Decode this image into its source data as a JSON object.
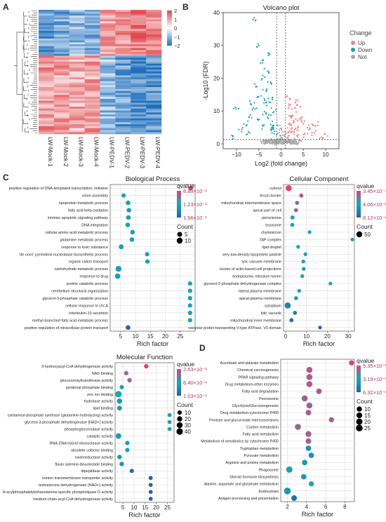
{
  "panel_letters": [
    "A",
    "B",
    "C",
    "D"
  ],
  "colors": {
    "up": "#f08080",
    "down": "#1ba3b4",
    "not": "#a8a8a8",
    "grid": "#d6d6d6",
    "heat_high": "#e0474c",
    "heat_mid": "#ffffff",
    "heat_low": "#1f6fbd",
    "q_high": "#d6467e",
    "q_mid": "#1aa7b5",
    "q_low": "#2a5fa6",
    "count_dot": "#000000"
  },
  "chart_data": [
    {
      "type": "heatmap",
      "panel": "A",
      "columns": [
        "LW-Mock-1",
        "LW-Mock-2",
        "LW-Mock-3",
        "LW-Mock-4",
        "LW-PEDV-1",
        "LW-PEDV-2",
        "LW-PEDV-3",
        "LW-PEDV-4"
      ],
      "color_scale": {
        "ticks": [
          2,
          1,
          0,
          -1,
          -2
        ],
        "colors": [
          "#e0474c",
          "#ffffff",
          "#1f6fbd"
        ]
      },
      "blocks": [
        {
          "label": "upper",
          "fraction": 0.37,
          "pattern": [
            -1.3,
            -1.2,
            -1.0,
            -1.1,
            1.0,
            1.2,
            1.4,
            1.3
          ]
        },
        {
          "label": "lower",
          "fraction": 0.63,
          "pattern": [
            1.1,
            1.0,
            0.9,
            1.0,
            -0.9,
            -1.3,
            -1.6,
            -1.5
          ]
        }
      ]
    },
    {
      "type": "scatter",
      "panel": "B",
      "title": "Volcano plot",
      "xlabel": "Log2 (fold change)",
      "ylabel": "-Log10 (FDR)",
      "xlim": [
        -13,
        13
      ],
      "ylim": [
        -1.5,
        40
      ],
      "xticks": [
        -10,
        -5,
        0,
        5,
        10
      ],
      "yticks": [
        0,
        10,
        20,
        30,
        40
      ],
      "thresholds": {
        "x": [
          -1,
          1
        ],
        "y": 1.3
      },
      "legend": {
        "title": "Change",
        "entries": [
          "Up",
          "Down",
          "Not"
        ]
      },
      "series": [
        {
          "name": "Up",
          "points": [
            [
              1.5,
              2.5
            ],
            [
              2.0,
              5.2
            ],
            [
              2.4,
              8.5
            ],
            [
              3.0,
              10.3
            ],
            [
              3.4,
              12.8
            ],
            [
              4.0,
              11.2
            ],
            [
              2.7,
              4.1
            ],
            [
              1.8,
              3.2
            ],
            [
              5.0,
              6.5
            ],
            [
              6.0,
              4.3
            ],
            [
              7.5,
              3.4
            ],
            [
              9.0,
              2.2
            ],
            [
              10.2,
              3.1
            ],
            [
              4.5,
              8.0
            ],
            [
              3.2,
              7.0
            ],
            [
              2.1,
              9.2
            ],
            [
              1.6,
              14.3
            ],
            [
              2.8,
              3.7
            ],
            [
              5.5,
              2.7
            ],
            [
              6.8,
              5.6
            ],
            [
              4.2,
              4.9
            ],
            [
              3.6,
              2.2
            ],
            [
              8.0,
              6.1
            ],
            [
              2.3,
              6.4
            ],
            [
              1.9,
              11.4
            ]
          ]
        },
        {
          "name": "Down",
          "points": [
            [
              -1.5,
              3.1
            ],
            [
              -2.0,
              5.3
            ],
            [
              -2.5,
              8.2
            ],
            [
              -3.0,
              12.1
            ],
            [
              -3.5,
              16.4
            ],
            [
              -4.0,
              20.2
            ],
            [
              -4.5,
              25.3
            ],
            [
              -5.0,
              30.1
            ],
            [
              -5.8,
              38.2
            ],
            [
              -3.2,
              22.3
            ],
            [
              -2.7,
              18.1
            ],
            [
              -4.8,
              14.2
            ],
            [
              -6.0,
              10.3
            ],
            [
              -7.0,
              8.1
            ],
            [
              -8.0,
              6.2
            ],
            [
              -9.0,
              4.3
            ],
            [
              -10.1,
              11.2
            ],
            [
              -11.0,
              2.2
            ],
            [
              -2.2,
              4.2
            ],
            [
              -1.8,
              6.3
            ],
            [
              -3.8,
              9.2
            ],
            [
              -5.2,
              7.3
            ],
            [
              -6.5,
              12.4
            ],
            [
              -2.9,
              27.2
            ],
            [
              -3.6,
              13.1
            ],
            [
              -1.6,
              10.2
            ],
            [
              -4.2,
              5.1
            ],
            [
              -7.5,
              3.4
            ],
            [
              -2.4,
              14.2
            ],
            [
              -5.5,
              18.1
            ]
          ]
        },
        {
          "name": "Not",
          "points": [
            [
              -1.0,
              0.5
            ],
            [
              -0.8,
              1.2
            ],
            [
              -0.5,
              0.3
            ],
            [
              -0.3,
              2.0
            ],
            [
              0.0,
              0.8
            ],
            [
              0.3,
              1.4
            ],
            [
              0.6,
              0.2
            ],
            [
              0.9,
              1.1
            ],
            [
              -0.6,
              0.9
            ],
            [
              0.4,
              0.6
            ],
            [
              -1.2,
              0.4
            ],
            [
              1.2,
              0.7
            ],
            [
              2.0,
              0.6
            ],
            [
              -2.1,
              0.8
            ],
            [
              3.0,
              0.3
            ],
            [
              -3.2,
              0.5
            ],
            [
              -0.2,
              3.2
            ],
            [
              0.2,
              4.1
            ],
            [
              -0.4,
              5.2
            ],
            [
              0.5,
              2.6
            ],
            [
              -4.0,
              0.2
            ],
            [
              4.2,
              0.4
            ]
          ]
        }
      ]
    },
    {
      "type": "scatter",
      "panel": "C",
      "title": "Biological Process",
      "xlabel": "Rich factor",
      "xticks": [
        5,
        10,
        15,
        20,
        25
      ],
      "xlim": [
        1.5,
        30
      ],
      "legend": {
        "qvalue_title": "qvalue",
        "qvalue_ticks": [
          "8.89×10⁻²",
          "1.23×10⁻¹",
          "1.56×10⁻¹"
        ],
        "count_title": "Count",
        "count_ticks": [
          5,
          10
        ]
      },
      "categories": [
        "positive regulation of DNA-templated transcription, initiation",
        "virion assembly",
        "lipoprotein metabolic process",
        "fatty acid beta-oxidation",
        "intrinsic apoptotic signaling pathway",
        "DNA integration",
        "cellular amino acid metabolic process",
        "glutamine metabolic process",
        "response to toxic substance",
        "'de novo' pyrimidine nucleobase biosynthetic process",
        "organic cation transport",
        "carbohydrate metabolic process",
        "response to drug",
        "proline catabolic process",
        "cerebellum structural organization",
        "glycerol-3-phosphate catabolic process",
        "cellular response to UV-A",
        "interleukin-10 secretion",
        "methyl-branched fatty acid metabolic process",
        "positive regulation of intracellular protein transport"
      ],
      "rich_factor": [
        28.5,
        6.0,
        7.5,
        7.8,
        7.6,
        7.4,
        9.0,
        8.8,
        5.2,
        13.9,
        14.0,
        4.3,
        4.0,
        28.3,
        28.3,
        28.3,
        28.3,
        28.3,
        28.3,
        7.5
      ],
      "count": [
        4,
        3,
        4,
        4,
        4,
        4,
        4,
        4,
        5,
        3,
        3,
        9,
        7,
        3,
        3,
        3,
        3,
        3,
        3,
        4
      ],
      "qvalue_pos": [
        0.0,
        0.55,
        0.55,
        0.55,
        0.55,
        0.55,
        0.55,
        0.55,
        0.55,
        0.55,
        0.55,
        0.55,
        0.55,
        0.55,
        0.55,
        0.55,
        0.55,
        0.55,
        0.55,
        1.0
      ]
    },
    {
      "type": "scatter",
      "panel": "C2",
      "title": "Cellular Component",
      "xlabel": "Rich factor",
      "xticks": [
        0,
        10,
        20,
        30
      ],
      "xlim": [
        -1,
        33
      ],
      "legend": {
        "qvalue_title": "qvalue",
        "qvalue_ticks": [
          "3.45×10⁻⁴",
          "4.06×10⁻²",
          "8.12×10⁻²"
        ],
        "count_title": "Count",
        "count_ticks": [
          50
        ]
      },
      "categories": [
        "cytosol",
        "brush border",
        "mitochondrial intermembrane space",
        "apical part of cell",
        "peroxisome",
        "lysosome",
        "chylomicron",
        "TAP complex",
        "lipid droplet",
        "very-low-density lipoprotein particle",
        "lytic vacuole membrane",
        "cluster of actin-based cell projections",
        "endoplasmic reticulum lumen",
        "glycerol-3-phosphate dehydrogenase complex",
        "lateral plasma membrane",
        "apical plasma membrane",
        "cytoplasm",
        "lytic vacuole",
        "mitochondrial inner membrane",
        "vacuolar proton-transporting V-type ATPase, V0 domain"
      ],
      "rich_factor": [
        1.5,
        7.5,
        5.5,
        5.0,
        3.3,
        3.2,
        11.5,
        32.0,
        6.0,
        9.5,
        8.5,
        8.7,
        8.0,
        21.5,
        6.5,
        5.0,
        1.0,
        4.5,
        2.8,
        16.5
      ],
      "count": [
        55,
        12,
        12,
        12,
        14,
        12,
        10,
        8,
        10,
        10,
        10,
        10,
        10,
        8,
        10,
        12,
        60,
        12,
        12,
        8
      ],
      "qvalue_pos": [
        0.0,
        0.1,
        0.2,
        0.2,
        0.45,
        0.5,
        0.5,
        0.55,
        0.5,
        0.55,
        0.55,
        0.55,
        0.55,
        0.55,
        0.55,
        0.55,
        0.75,
        0.8,
        0.9,
        1.0
      ]
    },
    {
      "type": "scatter",
      "panel": "C3",
      "title": "Molecular Function",
      "xlabel": "Rich factor",
      "xticks": [
        5,
        10,
        15,
        20,
        25
      ],
      "xlim": [
        1.5,
        28
      ],
      "legend": {
        "qvalue_title": "qvalue",
        "qvalue_ticks": [
          "2.53×10⁻²",
          "6.40×10⁻²",
          "1.03×10⁻¹"
        ],
        "count_title": "Count",
        "count_ticks": [
          10,
          20,
          30,
          40
        ]
      },
      "categories": [
        "3-hydroxyacyl-CoA dehydrogenase activity",
        "NAD binding",
        "glucuronosyltransferase activity",
        "pyridoxal phosphate binding",
        "zinc ion binding",
        "hydrolase activity",
        "lipid binding",
        "carbamoyl-phosphate synthase (glutamine-hydrolyzing) activity",
        "glycerol-3-phosphate dehydrogenase [NAD+] activity",
        "phosphoglucomutase activity",
        "catalytic activity",
        "RNA-DNA hybrid ribonuclease activity",
        "obsolete cofactor binding",
        "oxidoreductase activity",
        "flavin adenine dinucleotide binding",
        "dipeptidase activity",
        "ironion transmembrane transporter activity",
        "testosterone dehydrogenase (NAD+) activity",
        "N-acylphosphatidylethanolamine-specific phospholipase D activity",
        "medium-chain-acyl-CoA dehydrogenase activity"
      ],
      "rich_factor": [
        15.5,
        6.5,
        8.0,
        4.5,
        3.0,
        3.5,
        3.5,
        26.0,
        26.0,
        26.0,
        3.0,
        7.0,
        7.0,
        3.5,
        4.5,
        9.0,
        17.5,
        17.5,
        17.5,
        17.5
      ],
      "count": [
        12,
        10,
        12,
        10,
        40,
        20,
        14,
        8,
        8,
        8,
        25,
        10,
        10,
        12,
        12,
        10,
        8,
        8,
        8,
        8
      ],
      "qvalue_pos": [
        0.0,
        0.15,
        0.2,
        0.55,
        0.5,
        0.6,
        0.6,
        0.55,
        0.55,
        0.55,
        0.6,
        0.55,
        0.55,
        0.6,
        0.6,
        0.9,
        1.0,
        1.0,
        1.0,
        1.0
      ]
    },
    {
      "type": "scatter",
      "panel": "D",
      "xlabel": "Rich factor",
      "xticks": [
        2,
        4,
        6,
        8
      ],
      "xlim": [
        1.3,
        9
      ],
      "legend": {
        "qvalue_title": "qvalue",
        "qvalue_ticks": [
          "5.35×10⁻¹²",
          "3.19×10⁻³",
          "6.32×10⁻³"
        ],
        "count_title": "Count",
        "count_ticks": [
          10,
          15,
          20,
          25
        ]
      },
      "categories": [
        "Ascorbate and aldarate metabolism",
        "Chemical carcinogenesis",
        "PPAR signaling pathway",
        "Drug metabolism-other enzymes",
        "Fatty acid degradation",
        "Peroxisome",
        "Glycolysis/Gluconeogenesis",
        "Drug metabolism-cytochrome P450",
        "Pentose and glucuronate interconversions",
        "Carbon metabolism",
        "Fatty acid metabolism",
        "Metabolism of xenobiotics by cytochrome P450",
        "Tryptophan metabolism",
        "Pyruvate metabolism",
        "Arginine and proline metabolism",
        "Phagosome",
        "Steroid hormone biosynthesis",
        "Alanine, aspartate and glutamate metabolism",
        "Endocytosis",
        "Antigen processing and presentation"
      ],
      "rich_factor": [
        8.7,
        4.3,
        4.3,
        4.3,
        5.3,
        3.8,
        4.3,
        4.2,
        6.6,
        3.1,
        4.2,
        4.2,
        4.2,
        4.5,
        3.8,
        2.2,
        3.7,
        4.5,
        2.0,
        2.7
      ],
      "count": [
        10,
        18,
        18,
        18,
        14,
        18,
        16,
        14,
        10,
        18,
        16,
        14,
        12,
        12,
        12,
        20,
        12,
        10,
        25,
        14
      ],
      "qvalue_pos": [
        0.0,
        0.1,
        0.1,
        0.1,
        0.15,
        0.15,
        0.15,
        0.15,
        0.15,
        0.15,
        0.15,
        0.15,
        0.65,
        0.65,
        0.6,
        0.55,
        0.6,
        0.5,
        0.6,
        0.9
      ]
    }
  ]
}
